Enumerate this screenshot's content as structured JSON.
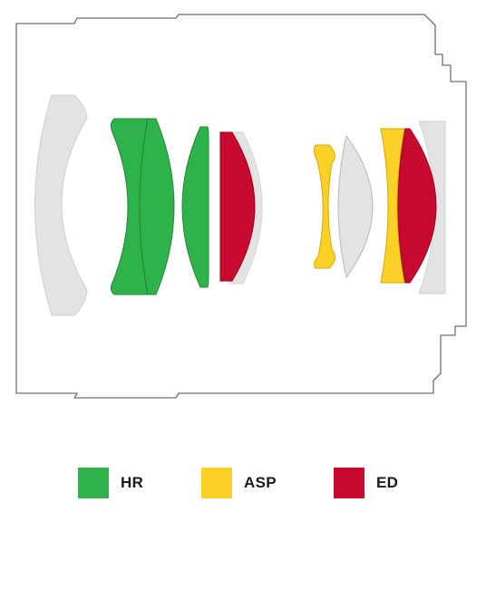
{
  "legend": {
    "items": [
      {
        "id": "hr",
        "label": "HR",
        "color": "#2eb34a"
      },
      {
        "id": "asp",
        "label": "ASP",
        "color": "#fbd125"
      },
      {
        "id": "ed",
        "label": "ED",
        "color": "#c8082f"
      }
    ]
  },
  "colors": {
    "housing_outline": "#6f6f6f",
    "standard_element": "#e3e3e3",
    "element_stroke": "#b7b7b7",
    "background": "#ffffff"
  }
}
